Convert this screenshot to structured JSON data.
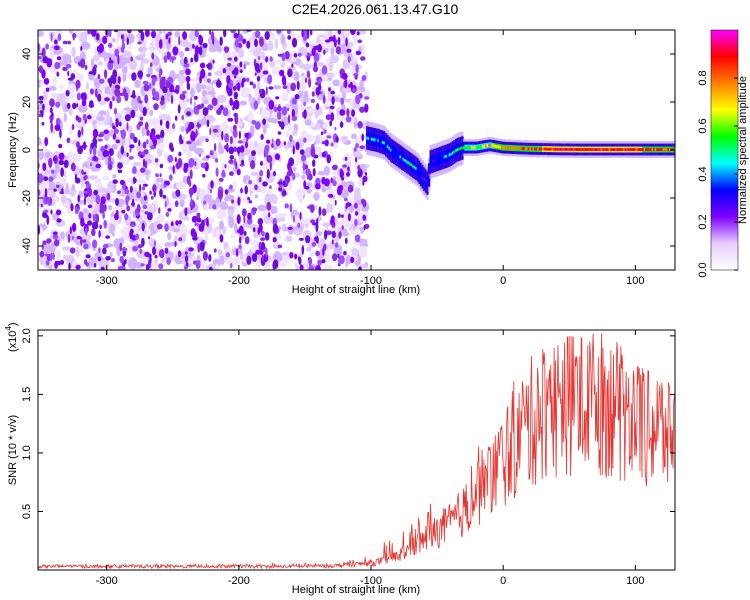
{
  "title": "C2E4.2026.061.13.47.G10",
  "chart_data": [
    {
      "type": "heatmap",
      "title": "C2E4.2026.061.13.47.G10",
      "xlabel": "Height of straight line (km)",
      "ylabel": "Frequency (Hz)",
      "xlim": [
        -352,
        130
      ],
      "ylim": [
        -50,
        50
      ],
      "x_ticks": [
        -300,
        -200,
        -100,
        0,
        100
      ],
      "x_tick_labels": [
        "-300",
        "-200",
        "-100",
        "0",
        "100"
      ],
      "y_ticks": [
        -40,
        -20,
        0,
        20,
        40
      ],
      "y_tick_labels": [
        "-40",
        "-20",
        "0",
        "20",
        "40"
      ],
      "noise_region": {
        "x_from": -352,
        "x_to": -103,
        "frequency_from": -50,
        "frequency_to": 50
      },
      "signal_track": {
        "x": [
          -103,
          -95,
          -90,
          -85,
          -80,
          -75,
          -70,
          -65,
          -60,
          -57,
          -55,
          -50,
          -45,
          -40,
          -35,
          -30,
          -20,
          -10,
          0,
          20,
          40,
          60,
          80,
          100,
          120,
          130
        ],
        "frequency": [
          5,
          4,
          3,
          0,
          -2,
          -4,
          -6,
          -8,
          -12,
          -14,
          -5,
          -4,
          -3,
          -2,
          0,
          1,
          1,
          2,
          1,
          0.5,
          0.3,
          0.2,
          0.2,
          0.2,
          0.2,
          0.2
        ],
        "normalized_amplitude": [
          0.4,
          0.35,
          0.45,
          0.4,
          0.3,
          0.4,
          0.5,
          0.35,
          0.3,
          0.25,
          0.3,
          0.35,
          0.4,
          0.45,
          0.5,
          0.55,
          0.6,
          0.7,
          0.75,
          0.85,
          0.9,
          0.92,
          0.9,
          0.88,
          0.85,
          0.8
        ]
      },
      "colorbar": {
        "label": "Normalized spectral amplitude",
        "range": [
          0,
          1
        ],
        "ticks": [
          0.0,
          0.2,
          0.4,
          0.6,
          0.8
        ],
        "tick_labels": [
          "0.0",
          "0.2",
          "0.4",
          "0.6",
          "0.8"
        ],
        "colors": [
          "#ffffff",
          "#e6ccff",
          "#7f00ff",
          "#0000ff",
          "#00ffff",
          "#00ff00",
          "#ffff00",
          "#ff8000",
          "#ff0000",
          "#ff00ff"
        ]
      }
    },
    {
      "type": "line",
      "xlabel": "Height of straight line (km)",
      "ylabel": "SNR (10 * v/v)",
      "y_scale_label_base": "(x10",
      "y_scale_label_exp": "4",
      "y_scale_label_end": ")",
      "xlim": [
        -352,
        130
      ],
      "ylim": [
        0,
        20500
      ],
      "x_ticks": [
        -300,
        -200,
        -100,
        0,
        100
      ],
      "x_tick_labels": [
        "-300",
        "-200",
        "-100",
        "0",
        "100"
      ],
      "y_ticks": [
        5000,
        10000,
        15000,
        20000
      ],
      "y_tick_labels": [
        "0.5",
        "1.0",
        "1.5",
        "2.0"
      ],
      "color": "#e8322e",
      "series": [
        {
          "name": "SNR",
          "x": [
            -352,
            -300,
            -250,
            -200,
            -150,
            -120,
            -100,
            -90,
            -80,
            -70,
            -60,
            -50,
            -40,
            -30,
            -20,
            -10,
            0,
            10,
            20,
            30,
            40,
            50,
            60,
            70,
            80,
            90,
            100,
            110,
            120,
            130
          ],
          "mean": [
            300,
            300,
            300,
            300,
            300,
            400,
            600,
            800,
            1200,
            1800,
            2600,
            3300,
            4000,
            5000,
            6500,
            8000,
            9500,
            11000,
            12500,
            13500,
            14000,
            14500,
            14500,
            14500,
            14000,
            13500,
            13000,
            12500,
            12000,
            11500
          ],
          "peak": [
            500,
            500,
            500,
            500,
            600,
            800,
            1200,
            2500,
            3000,
            4000,
            5000,
            6500,
            7500,
            9000,
            11000,
            10500,
            13000,
            17000,
            18500,
            19000,
            19500,
            20000,
            19800,
            20300,
            20200,
            19000,
            17500,
            17000,
            16500,
            15500
          ]
        }
      ]
    }
  ]
}
